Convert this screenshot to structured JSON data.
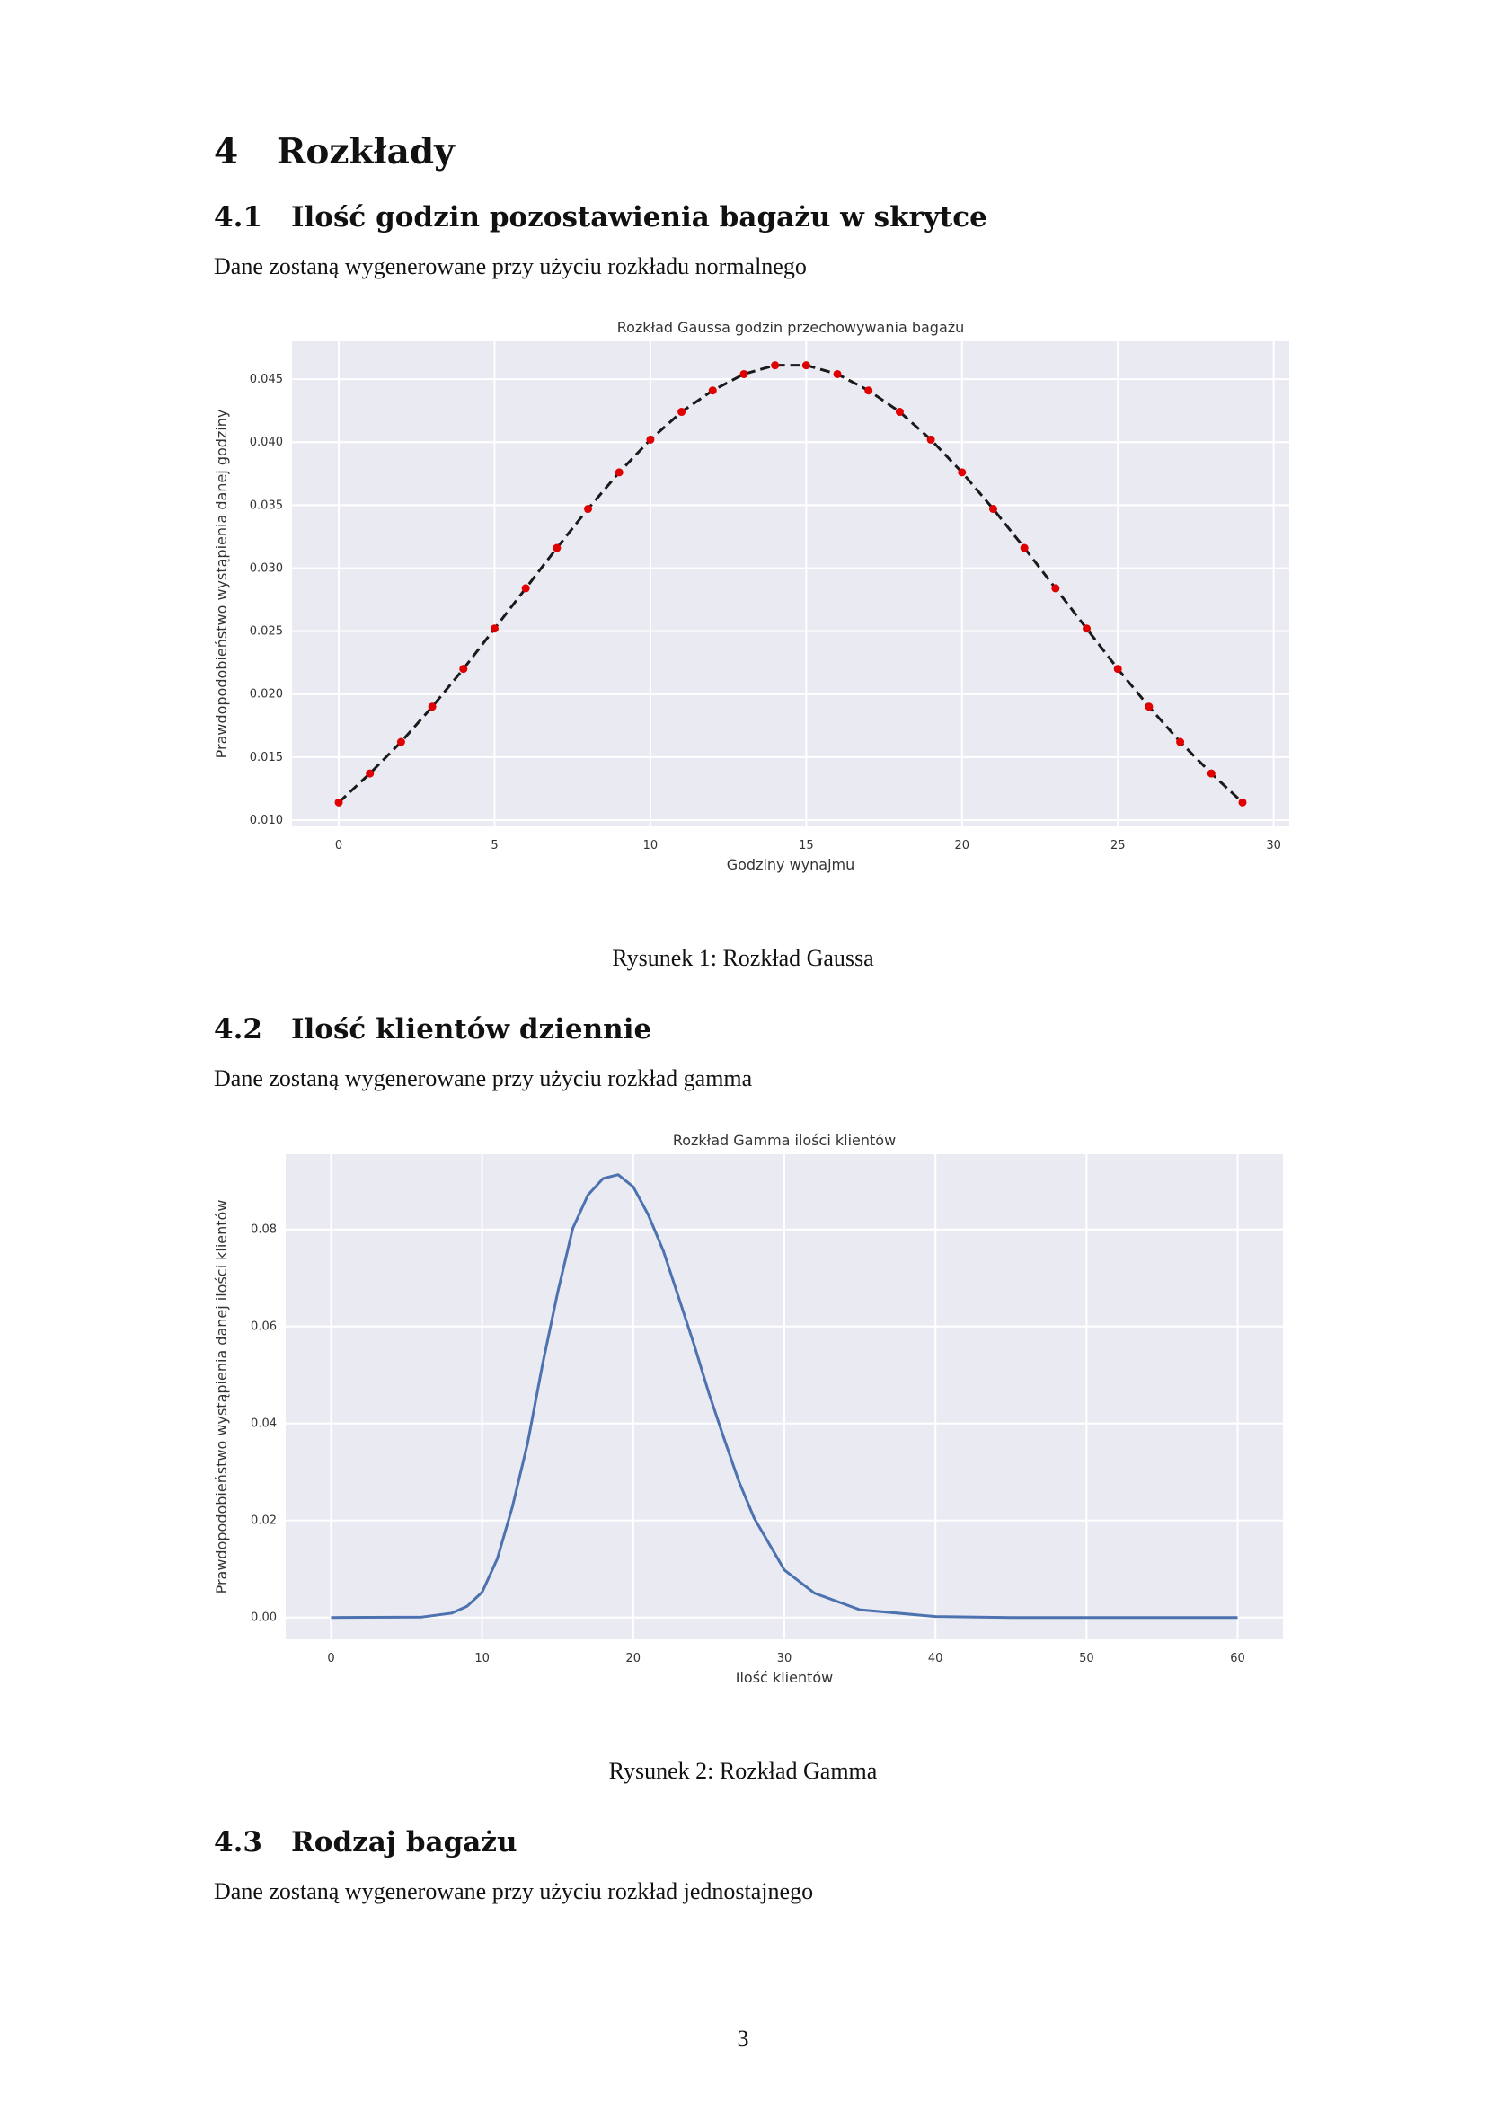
{
  "section": {
    "number": "4",
    "title": "Rozkłady"
  },
  "subsections": [
    {
      "number": "4.1",
      "title": "Ilość godzin pozostawienia bagażu w skrytce",
      "text": "Dane zostaną wygenerowane przy użyciu rozkładu normalnego",
      "caption": "Rysunek 1: Rozkład Gaussa"
    },
    {
      "number": "4.2",
      "title": "Ilość klientów dziennie",
      "text": "Dane zostaną wygenerowane przy użyciu rozkład gamma",
      "caption": "Rysunek 2: Rozkład Gamma"
    },
    {
      "number": "4.3",
      "title": "Rodzaj bagażu",
      "text": "Dane zostaną wygenerowane przy użyciu rozkład jednostajnego"
    }
  ],
  "page_number": "3",
  "chart_data": [
    {
      "type": "line",
      "title": "Rozkład Gaussa godzin przechowywania bagażu",
      "xlabel": "Godziny wynajmu",
      "ylabel": "Prawdopodobieństwo wystąpienia danej godziny",
      "xlim": [
        -1.5,
        30.5
      ],
      "ylim": [
        0.0095,
        0.048
      ],
      "xticks": [
        0,
        5,
        10,
        15,
        20,
        25,
        30
      ],
      "yticks": [
        0.01,
        0.015,
        0.02,
        0.025,
        0.03,
        0.035,
        0.04,
        0.045
      ],
      "ytick_labels": [
        "0.010",
        "0.015",
        "0.020",
        "0.025",
        "0.030",
        "0.035",
        "0.040",
        "0.045"
      ],
      "grid": true,
      "series": [
        {
          "style": "dashed-line",
          "color": "#1a1a1a",
          "x": [
            0,
            1,
            2,
            3,
            4,
            5,
            6,
            7,
            8,
            9,
            10,
            11,
            12,
            13,
            14,
            15,
            16,
            17,
            18,
            19,
            20,
            21,
            22,
            23,
            24,
            25,
            26,
            27,
            28,
            29
          ],
          "y": [
            0.0114,
            0.0137,
            0.0162,
            0.019,
            0.022,
            0.0252,
            0.0284,
            0.0316,
            0.0347,
            0.0376,
            0.0402,
            0.0424,
            0.0441,
            0.0454,
            0.0461,
            0.0461,
            0.0454,
            0.0441,
            0.0424,
            0.0402,
            0.0376,
            0.0347,
            0.0316,
            0.0284,
            0.0252,
            0.022,
            0.019,
            0.0162,
            0.0137,
            0.0114
          ]
        },
        {
          "style": "points",
          "color": "#e00000",
          "x": [
            0,
            1,
            2,
            3,
            4,
            5,
            6,
            7,
            8,
            9,
            10,
            11,
            12,
            13,
            14,
            15,
            16,
            17,
            18,
            19,
            20,
            21,
            22,
            23,
            24,
            25,
            26,
            27,
            28,
            29
          ],
          "y": [
            0.0114,
            0.0137,
            0.0162,
            0.019,
            0.022,
            0.0252,
            0.0284,
            0.0316,
            0.0347,
            0.0376,
            0.0402,
            0.0424,
            0.0441,
            0.0454,
            0.0461,
            0.0461,
            0.0454,
            0.0441,
            0.0424,
            0.0402,
            0.0376,
            0.0347,
            0.0316,
            0.0284,
            0.0252,
            0.022,
            0.019,
            0.0162,
            0.0137,
            0.0114
          ]
        }
      ]
    },
    {
      "type": "line",
      "title": "Rozkład Gamma ilości klientów",
      "xlabel": "Ilość klientów",
      "ylabel": "Prawdopodobieństwo wystąpienia danej ilości klientów",
      "xlim": [
        -3,
        63
      ],
      "ylim": [
        -0.0045,
        0.0955
      ],
      "xticks": [
        0,
        10,
        20,
        30,
        40,
        50,
        60
      ],
      "yticks": [
        0.0,
        0.02,
        0.04,
        0.06,
        0.08
      ],
      "ytick_labels": [
        "0.00",
        "0.02",
        "0.04",
        "0.06",
        "0.08"
      ],
      "grid": true,
      "series": [
        {
          "style": "line",
          "color": "#4c72b0",
          "x": [
            0,
            6,
            8,
            9,
            10,
            11,
            12,
            13,
            14,
            15,
            16,
            17,
            18,
            19,
            20,
            21,
            22,
            23,
            24,
            25,
            26,
            27,
            28,
            30,
            32,
            35,
            40,
            45,
            50,
            55,
            60
          ],
          "y": [
            0,
            0.0001,
            0.0009,
            0.0023,
            0.0052,
            0.0121,
            0.0228,
            0.0358,
            0.0522,
            0.067,
            0.0802,
            0.0871,
            0.0905,
            0.0913,
            0.0888,
            0.083,
            0.0755,
            0.066,
            0.0565,
            0.0463,
            0.037,
            0.028,
            0.0205,
            0.0098,
            0.005,
            0.0016,
            0.0002,
            0.0,
            0,
            0,
            0
          ]
        }
      ]
    }
  ]
}
